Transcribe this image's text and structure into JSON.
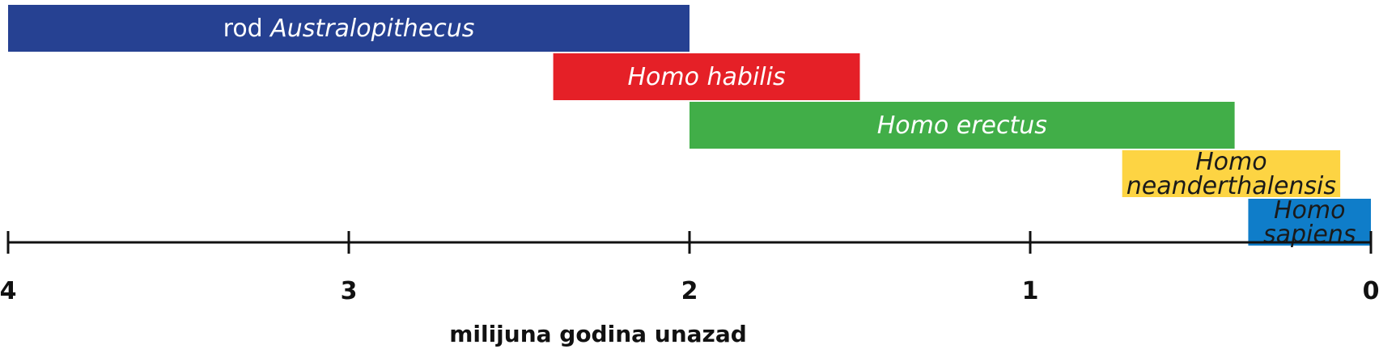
{
  "chart_data": {
    "type": "bar",
    "orientation": "horizontal-range",
    "xlabel": "milijuna godina unazad",
    "xlim": [
      4,
      0
    ],
    "ticks": [
      "4",
      "3",
      "2",
      "1",
      "0"
    ],
    "tick_values": [
      4,
      3,
      2,
      1,
      0
    ],
    "grid": false,
    "series": [
      {
        "label_prefix": "rod ",
        "label_lines": [
          "Australopithecus"
        ],
        "start": 4.0,
        "end": 2.0,
        "color": "#264192",
        "text_color": "#ffffff"
      },
      {
        "label_lines": [
          "Homo habilis"
        ],
        "start": 2.4,
        "end": 1.5,
        "color": "#e52027",
        "text_color": "#ffffff"
      },
      {
        "label_lines": [
          "Homo erectus"
        ],
        "start": 2.0,
        "end": 0.4,
        "color": "#41ae48",
        "text_color": "#ffffff"
      },
      {
        "label_lines": [
          "Homo",
          "neanderthalensis"
        ],
        "start": 0.73,
        "end": 0.09,
        "color": "#fdd443",
        "text_color": "#1a1a1a"
      },
      {
        "label_lines": [
          "Homo",
          "sapiens"
        ],
        "start": 0.36,
        "end": 0.0,
        "color": "#0f7dc9",
        "text_color": "#1a1a1a"
      }
    ]
  }
}
